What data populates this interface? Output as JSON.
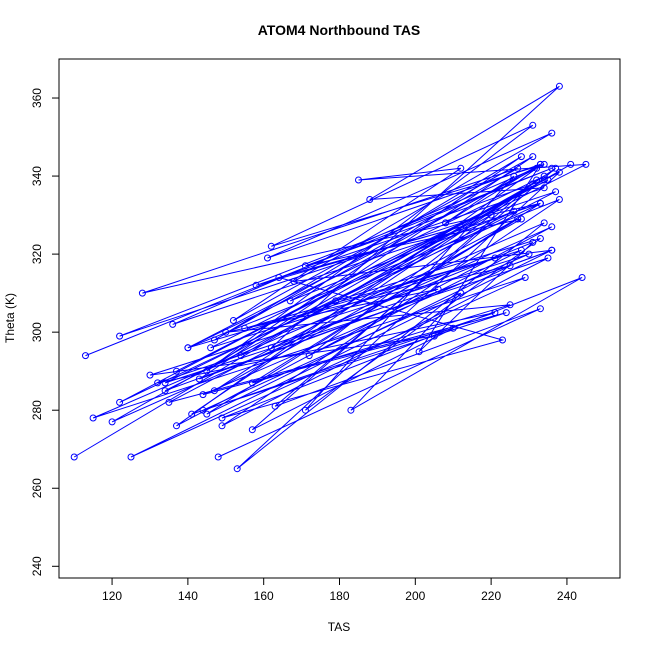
{
  "chart_data": {
    "type": "line",
    "title": "ATOM4 Northbound TAS",
    "xlabel": "TAS",
    "ylabel": "Theta (K)",
    "xlim": [
      106,
      254
    ],
    "ylim": [
      237,
      370
    ],
    "x_ticks": [
      120,
      140,
      160,
      180,
      200,
      220,
      240
    ],
    "y_ticks": [
      240,
      260,
      280,
      300,
      320,
      340,
      360
    ],
    "grid": false,
    "legend": "none",
    "series_color": "#0000ff",
    "marker": "open-circle",
    "series": [
      {
        "x": [
          113,
          236,
          122,
          237,
          134,
          236,
          125,
          229,
          115,
          234,
          153,
          238,
          122,
          233,
          128,
          227,
          147,
          228,
          145,
          231,
          162,
          234,
          136,
          233,
          145,
          225,
          155,
          221,
          140,
          234,
          147,
          228,
          171,
          234,
          154,
          241
        ],
        "y": [
          294,
          342,
          299,
          336,
          285,
          321,
          268,
          314,
          278,
          328,
          265,
          341,
          282,
          333,
          310,
          342,
          298,
          345,
          290,
          353,
          322,
          343,
          302,
          333,
          279,
          317,
          301,
          319,
          296,
          340,
          285,
          329,
          317,
          339,
          294,
          343
        ]
      },
      {
        "x": [
          110,
          231,
          120,
          236,
          137,
          232,
          140,
          238,
          149,
          235,
          134,
          226,
          167,
          233,
          161,
          236,
          168,
          236,
          143,
          231,
          152,
          212,
          185,
          245,
          137,
          235,
          146,
          228,
          172,
          232,
          157,
          210,
          144,
          230,
          130,
          205
        ],
        "y": [
          268,
          338,
          277,
          327,
          276,
          342,
          296,
          334,
          276,
          319,
          287,
          331,
          308,
          343,
          319,
          351,
          313,
          321,
          288,
          345,
          303,
          342,
          339,
          343,
          290,
          339,
          296,
          321,
          294,
          339,
          275,
          301,
          284,
          320,
          289,
          299
        ]
      },
      {
        "x": [
          148,
          233,
          163,
          237,
          141,
          221,
          132,
          206,
          150,
          225,
          157,
          227,
          135,
          224,
          144,
          212,
          183,
          244,
          149,
          223,
          164,
          212,
          158,
          234,
          188,
          238,
          162,
          231,
          201,
          233,
          208,
          226,
          171,
          233,
          179,
          220
        ],
        "y": [
          268,
          306,
          281,
          342,
          279,
          305,
          287,
          311,
          300,
          307,
          287,
          329,
          282,
          305,
          280,
          310,
          280,
          314,
          278,
          298,
          314,
          327,
          312,
          337,
          334,
          363,
          296,
          323,
          295,
          343,
          328,
          340,
          280,
          324,
          308,
          330
        ]
      }
    ]
  }
}
